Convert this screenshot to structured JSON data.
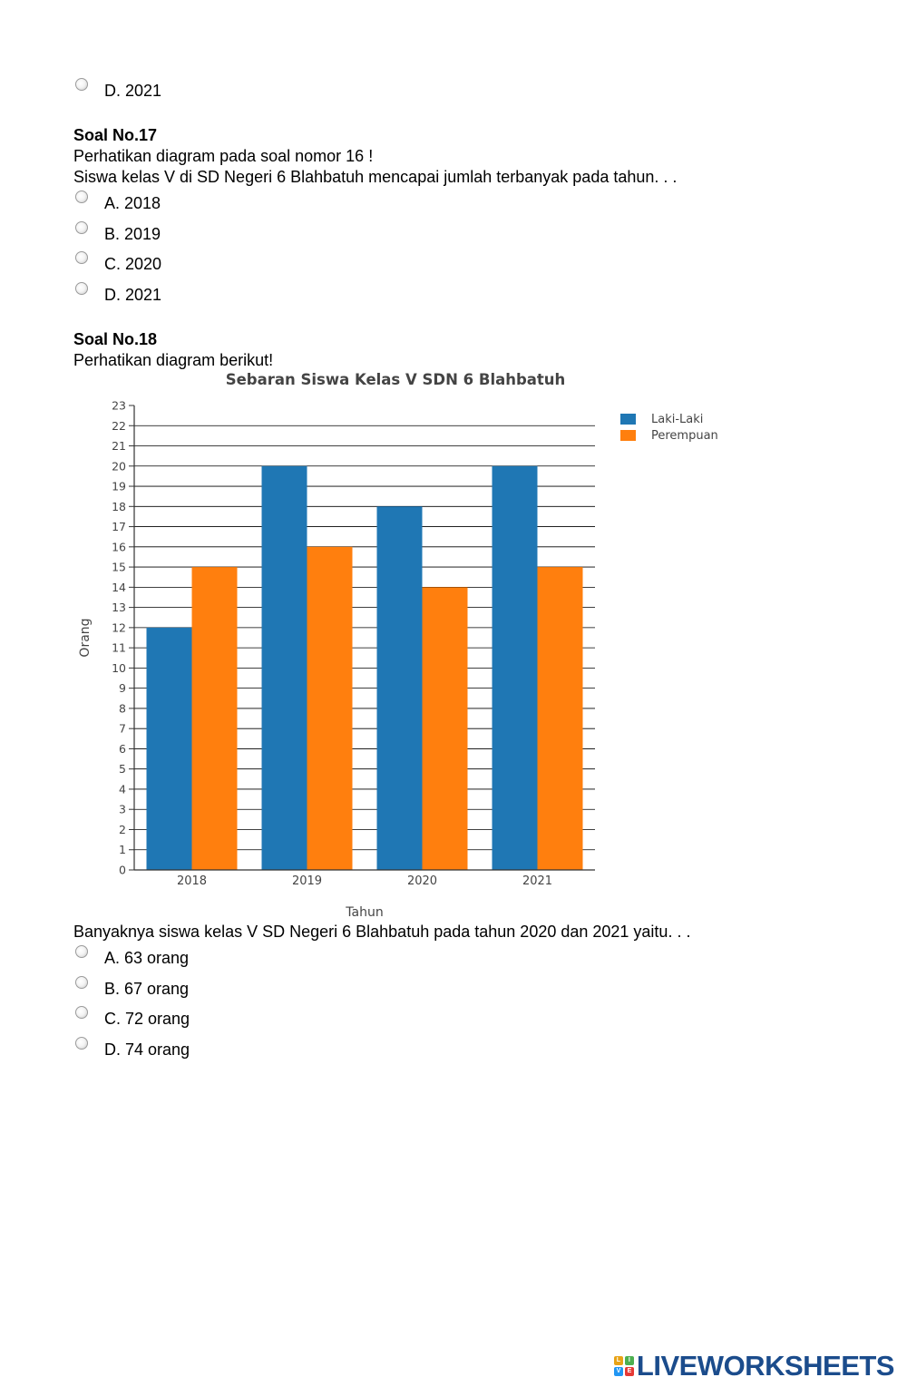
{
  "q16_tail": {
    "options": [
      {
        "label": "D. 2021"
      }
    ]
  },
  "q17": {
    "title": "Soal No.17",
    "lines": [
      "Perhatikan diagram pada soal nomor 16 !",
      "Siswa kelas V di SD Negeri 6 Blahbatuh mencapai jumlah terbanyak pada tahun. . ."
    ],
    "options": [
      {
        "label": "A. 2018"
      },
      {
        "label": "B. 2019"
      },
      {
        "label": "C. 2020"
      },
      {
        "label": "D. 2021"
      }
    ]
  },
  "q18": {
    "title": "Soal No.18",
    "intro": "Perhatikan diagram berikut!",
    "question": "Banyaknya siswa kelas V SD Negeri 6 Blahbatuh pada tahun 2020 dan 2021 yaitu. . .",
    "options": [
      {
        "label": "A. 63 orang"
      },
      {
        "label": "B. 67 orang"
      },
      {
        "label": "C. 72 orang"
      },
      {
        "label": "D. 74 orang"
      }
    ]
  },
  "chart_data": {
    "type": "bar",
    "title": "Sebaran Siswa Kelas V SDN 6 Blahbatuh",
    "xlabel": "Tahun",
    "ylabel": "Orang",
    "categories": [
      "2018",
      "2019",
      "2020",
      "2021"
    ],
    "series": [
      {
        "name": "Laki-Laki",
        "color": "#1f77b4",
        "values": [
          12,
          20,
          18,
          20
        ]
      },
      {
        "name": "Perempuan",
        "color": "#ff7f0e",
        "values": [
          15,
          16,
          14,
          15
        ]
      }
    ],
    "ylim": [
      0,
      23
    ],
    "ytick_step": 1,
    "grid": true,
    "legend": "top-right"
  },
  "footer": {
    "logo_text": "LIVEWORKSHEETS",
    "logo_letters": [
      "L",
      "I",
      "V",
      "E"
    ],
    "logo_colors": [
      "#e8a317",
      "#4caf50",
      "#2196f3",
      "#e53935"
    ]
  }
}
